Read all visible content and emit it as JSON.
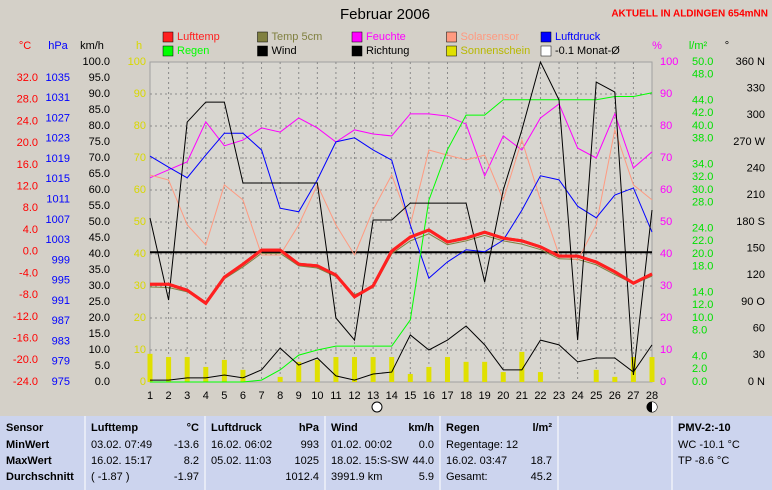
{
  "chart_data": {
    "type": "line",
    "title": "Februar 2006",
    "annotation": "AKTUELL IN ALDINGEN 654mNN",
    "x": [
      1,
      2,
      3,
      4,
      5,
      6,
      7,
      8,
      9,
      10,
      11,
      12,
      13,
      14,
      15,
      16,
      17,
      18,
      19,
      20,
      21,
      22,
      23,
      24,
      25,
      26,
      27,
      28
    ],
    "xlim": [
      1,
      28
    ],
    "grid": true,
    "axes": [
      {
        "label": "°C",
        "side": "left",
        "color": "#ff0000",
        "ylim": [
          -24,
          34.95
        ],
        "yticks": [
          {
            "value": 32,
            "label": "32.0"
          },
          {
            "value": 28,
            "label": "28.0"
          },
          {
            "value": 24,
            "label": "24.0"
          },
          {
            "value": 20,
            "label": "20.0"
          },
          {
            "value": 16,
            "label": "16.0"
          },
          {
            "value": 12,
            "label": "12.0"
          },
          {
            "value": 8,
            "label": "8.0"
          },
          {
            "value": 4,
            "label": "4.0"
          },
          {
            "value": 0,
            "label": "0.0"
          },
          {
            "value": -4,
            "label": "-4.0"
          },
          {
            "value": -8,
            "label": "-8.0"
          },
          {
            "value": -12,
            "label": "-12.0"
          },
          {
            "value": -16,
            "label": "-16.0"
          },
          {
            "value": -20,
            "label": "-20.0"
          },
          {
            "value": -24,
            "label": "-24.0"
          }
        ]
      },
      {
        "label": "hPa",
        "side": "left",
        "color": "#0000ff",
        "ylim": [
          975,
          1038.16
        ],
        "yticks": [
          1035,
          1031,
          1027,
          1023,
          1019,
          1015,
          1011,
          1007,
          1003,
          999,
          995,
          991,
          987,
          983,
          979,
          975
        ]
      },
      {
        "label": "km/h",
        "side": "left",
        "color": "#000000",
        "ylim": [
          0,
          100
        ],
        "yticks": [
          {
            "value": 100,
            "label": "100.0"
          },
          {
            "value": 95,
            "label": "95.0"
          },
          {
            "value": 90,
            "label": "90.0"
          },
          {
            "value": 85,
            "label": "85.0"
          },
          {
            "value": 80,
            "label": "80.0"
          },
          {
            "value": 75,
            "label": "75.0"
          },
          {
            "value": 70,
            "label": "70.0"
          },
          {
            "value": 65,
            "label": "65.0"
          },
          {
            "value": 60,
            "label": "60.0"
          },
          {
            "value": 55,
            "label": "55.0"
          },
          {
            "value": 50,
            "label": "50.0"
          },
          {
            "value": 45,
            "label": "45.0"
          },
          {
            "value": 40,
            "label": "40.0"
          },
          {
            "value": 35,
            "label": "35.0"
          },
          {
            "value": 30,
            "label": "30.0"
          },
          {
            "value": 25,
            "label": "25.0"
          },
          {
            "value": 20,
            "label": "20.0"
          },
          {
            "value": 15,
            "label": "15.0"
          },
          {
            "value": 10,
            "label": "10.0"
          },
          {
            "value": 5,
            "label": "5.0"
          },
          {
            "value": 0,
            "label": "0.0"
          }
        ]
      },
      {
        "label": "h",
        "side": "left",
        "color": "#d8d800",
        "ylim": [
          0,
          100
        ],
        "yticks": [
          100,
          90,
          80,
          70,
          60,
          50,
          40,
          30,
          20,
          10,
          0
        ]
      },
      {
        "label": "%",
        "side": "right",
        "color": "#ff00ff",
        "ylim": [
          0,
          100
        ],
        "yticks": [
          100,
          90,
          80,
          70,
          60,
          50,
          40,
          30,
          20,
          10,
          0
        ]
      },
      {
        "label": "l/m²",
        "side": "right",
        "color": "#00e000",
        "ylim": [
          0,
          50
        ],
        "yticks": [
          {
            "value": 50,
            "label": "50.0"
          },
          {
            "value": 48,
            "label": "48.0"
          },
          {
            "value": 44,
            "label": "44.0"
          },
          {
            "value": 42,
            "label": "42.0"
          },
          {
            "value": 40,
            "label": "40.0"
          },
          {
            "value": 38,
            "label": "38.0"
          },
          {
            "value": 34,
            "label": "34.0"
          },
          {
            "value": 32,
            "label": "32.0"
          },
          {
            "value": 30,
            "label": "30.0"
          },
          {
            "value": 28,
            "label": "28.0"
          },
          {
            "value": 24,
            "label": "24.0"
          },
          {
            "value": 22,
            "label": "22.0"
          },
          {
            "value": 20,
            "label": "20.0"
          },
          {
            "value": 18,
            "label": "18.0"
          },
          {
            "value": 14,
            "label": "14.0"
          },
          {
            "value": 12,
            "label": "12.0"
          },
          {
            "value": 10,
            "label": "10.0"
          },
          {
            "value": 8,
            "label": "8.0"
          },
          {
            "value": 4,
            "label": "4.0"
          },
          {
            "value": 2,
            "label": "2.0"
          },
          {
            "value": 0,
            "label": "0.0"
          }
        ]
      },
      {
        "label": "°",
        "side": "right",
        "color": "#000000",
        "ylim": [
          0,
          360
        ],
        "yticks": [
          {
            "value": 360,
            "label": "360 N"
          },
          330,
          300,
          {
            "value": 270,
            "label": "270 W"
          },
          240,
          210,
          {
            "value": 180,
            "label": "180 S"
          },
          150,
          120,
          {
            "value": 90,
            "label": "90 O"
          },
          60,
          30,
          {
            "value": 0,
            "label": "0 N"
          }
        ]
      }
    ],
    "series": [
      {
        "name": "Lufttemp",
        "color": "#ff2020",
        "axis": "°C",
        "style": "line",
        "width": 3,
        "values": [
          -6.0,
          -6.0,
          -7.1,
          -9.5,
          -4.7,
          -2.3,
          0.3,
          0.3,
          -2.3,
          -2.6,
          -4.3,
          -8.3,
          -6.3,
          0.1,
          2.7,
          4.0,
          1.8,
          2.5,
          3.6,
          2.5,
          2.0,
          0.9,
          -0.8,
          -0.8,
          -1.9,
          -3.7,
          -5.8,
          -4.1
        ]
      },
      {
        "name": "Temp 5cm",
        "color": "#808040",
        "axis": "°C",
        "style": "line",
        "width": 1,
        "values": [
          -6.5,
          -6.6,
          -7.4,
          -9.2,
          -5.0,
          -2.8,
          -0.3,
          -0.3,
          -2.6,
          -3.0,
          -4.6,
          -7.9,
          -6.6,
          -0.4,
          2.0,
          3.3,
          1.3,
          2.0,
          3.0,
          2.0,
          1.4,
          0.4,
          -1.3,
          -1.4,
          -2.4,
          -4.2,
          -5.9,
          -4.5
        ]
      },
      {
        "name": "Feuchte",
        "color": "#ff00ff",
        "axis": "%",
        "style": "line",
        "width": 1,
        "values": [
          63.8,
          66.3,
          68.8,
          81.3,
          73.8,
          75.6,
          79.4,
          78.1,
          82.5,
          79.4,
          75,
          78.8,
          77.5,
          76.9,
          83.8,
          83.8,
          83.1,
          80.6,
          64.4,
          76.9,
          72.5,
          82.5,
          86.9,
          73.1,
          70,
          83.8,
          66.9,
          71.9
        ]
      },
      {
        "name": "Solarsensor",
        "color": "#ff9a80",
        "axis": "km/h",
        "style": "line",
        "width": 1,
        "values": [
          64.7,
          63.1,
          49.1,
          42.8,
          61.6,
          56.9,
          39.7,
          39.7,
          49.1,
          61.6,
          49.1,
          39.7,
          53.8,
          64.7,
          49.1,
          72.5,
          70.9,
          69.4,
          70.9,
          56.9,
          75.6,
          56.9,
          39.7,
          38.1,
          49.1,
          78.8,
          61.6,
          56.9
        ]
      },
      {
        "name": "Luftdruck",
        "color": "#0000ff",
        "axis": "hPa",
        "style": "line",
        "width": 1,
        "values": [
          1019.6,
          1017.4,
          1015.3,
          1019.8,
          1024.1,
          1024.1,
          1020.8,
          1009.3,
          1008.6,
          1014.9,
          1022.4,
          1023.2,
          1020.8,
          1018.8,
          1006,
          995.5,
          998.7,
          1001.1,
          1000.7,
          1003,
          1008.9,
          1015.7,
          1014.9,
          1009.7,
          1007.4,
          1011.9,
          1013.3,
          1004.6
        ]
      },
      {
        "name": "Regen",
        "color": "#00ff00",
        "axis": "l/m²",
        "style": "line",
        "width": 1,
        "values": [
          0,
          0,
          0,
          0,
          0,
          0,
          0.3,
          1.9,
          4.2,
          5,
          5.6,
          5.6,
          5.6,
          5.6,
          9.7,
          28.4,
          36.3,
          41.7,
          41.7,
          44.1,
          44.1,
          44.1,
          44.1,
          44.1,
          44.1,
          44.6,
          44.6,
          45.2
        ]
      },
      {
        "name": "Wind",
        "color": "#000000",
        "axis": "km/h",
        "style": "line",
        "width": 1,
        "values": [
          0.6,
          0.6,
          1.3,
          1.3,
          2.2,
          1.3,
          3.8,
          10.6,
          5.3,
          7.5,
          1.9,
          0.6,
          2.5,
          3.1,
          14.7,
          10,
          13.1,
          17.5,
          11.6,
          3.8,
          3.8,
          13.1,
          11.6,
          6.3,
          7.5,
          7.5,
          3.1,
          11.6
        ]
      },
      {
        "name": "Richtung",
        "color": "#000000",
        "axis": "°",
        "style": "line",
        "width": 1,
        "values": [
          184.5,
          92.2,
          292.4,
          314.9,
          314.9,
          223.9,
          223.9,
          223.9,
          223.9,
          223.9,
          72,
          47.2,
          182.2,
          182.2,
          201.3,
          201.3,
          201.3,
          201.3,
          112.5,
          216,
          283.5,
          360,
          317.2,
          47.2,
          337.5,
          326.2,
          7.9,
          193.5
        ]
      },
      {
        "name": "Sonnenschein",
        "color": "#e0e000",
        "axis": "h",
        "style": "bar",
        "values": [
          8.8,
          7.8,
          7.8,
          4.7,
          6.9,
          3.8,
          0,
          1.6,
          6.3,
          6.9,
          7.8,
          7.8,
          7.8,
          7.8,
          2.5,
          4.7,
          7.8,
          6.3,
          6.3,
          3.1,
          9.4,
          3.1,
          0,
          0,
          3.8,
          1.6,
          7.8,
          7.8
        ]
      },
      {
        "name": "-0.1 Monat-Ø",
        "color": "#000000",
        "axis": "°C",
        "style": "hline",
        "width": 2,
        "value": -0.1
      }
    ]
  },
  "table": {
    "header": [
      "Sensor",
      {
        "left": "Lufttemp",
        "right": "°C"
      },
      {
        "left": "Luftdruck",
        "right": "hPa"
      },
      {
        "left": "Wind",
        "right": "km/h"
      },
      {
        "left": "Regen",
        "right": "l/m²"
      },
      {
        "left": "PMV-2:-10"
      }
    ],
    "rows": [
      [
        "MinWert",
        {
          "left": "03.02.  07:49",
          "right": "-13.6"
        },
        {
          "left": "16.02.  06:02",
          "right": "993"
        },
        {
          "left": "01.02.  00:02",
          "right": "0.0"
        },
        {
          "left": "Regentage: 12"
        },
        {
          "left": "WC -10.1 °C"
        }
      ],
      [
        "MaxWert",
        {
          "left": "16.02.  15:17",
          "right": "8.2"
        },
        {
          "left": "05.02.  11:03",
          "right": "1025"
        },
        {
          "left": "18.02.  15:S-SW",
          "right": "44.0"
        },
        {
          "left": "16.02.  03:47",
          "right": "18.7"
        },
        {
          "left": "TP -8.6 °C"
        }
      ],
      [
        "Durchschnitt",
        {
          "left": "( -1.87 )",
          "right": "-1.97"
        },
        {
          "right": "1012.4"
        },
        {
          "left": "3991.9 km",
          "right": "5.9"
        },
        {
          "left": "Gesamt:",
          "right": "45.2"
        }
      ]
    ]
  }
}
